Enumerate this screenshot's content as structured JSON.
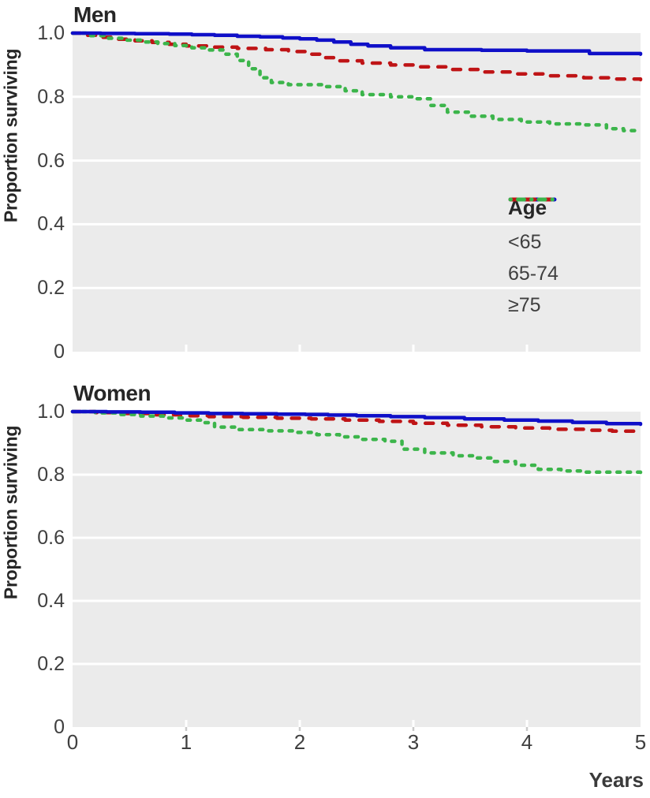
{
  "y_axis_label": "Proportion surviving",
  "x_axis_label": "Years",
  "xticks": [
    "0",
    "1",
    "2",
    "3",
    "4",
    "5"
  ],
  "panels": [
    {
      "title": "Men",
      "yticks": [
        "1.0",
        "0.8",
        "0.6",
        "0.4",
        "0.2",
        "0"
      ]
    },
    {
      "title": "Women",
      "yticks": [
        "1.0",
        "0.8",
        "0.6",
        "0.4",
        "0.2",
        "0"
      ]
    }
  ],
  "legend": {
    "title": "Age",
    "items": [
      {
        "label": "<65"
      },
      {
        "label": "65-74"
      },
      {
        "label": "≥75"
      }
    ]
  },
  "colors": {
    "plot_background": "#ebebeb",
    "gridline": "#ffffff",
    "axis_tick_inner": "#ffffff",
    "axis_tick_outer": "#c9c9c9",
    "tick_text": "#3f3f3f",
    "title_text": "#262626",
    "blue": "#0f0fc8",
    "red": "#bf1416",
    "green": "#3cb54b"
  },
  "chart_data": [
    {
      "type": "line",
      "title": "Men",
      "xlabel": "Years",
      "ylabel": "Proportion surviving",
      "xlim": [
        0,
        5
      ],
      "ylim": [
        0,
        1.0
      ],
      "xticks": [
        0,
        1,
        2,
        3,
        4,
        5
      ],
      "yticks": [
        0,
        0.2,
        0.4,
        0.6,
        0.8,
        1.0
      ],
      "grid": "horizontal white gridlines on gray background",
      "step": "after",
      "legend_position": "inside right, mid-height",
      "series": [
        {
          "name": "<65",
          "color": "#0f0fc8",
          "linestyle": "solid",
          "points": [
            [
              0,
              1.0
            ],
            [
              0.25,
              0.999
            ],
            [
              0.55,
              0.998
            ],
            [
              0.85,
              0.997
            ],
            [
              1.05,
              0.995
            ],
            [
              1.25,
              0.993
            ],
            [
              1.45,
              0.99
            ],
            [
              1.65,
              0.988
            ],
            [
              1.85,
              0.985
            ],
            [
              2.0,
              0.982
            ],
            [
              2.15,
              0.978
            ],
            [
              2.3,
              0.972
            ],
            [
              2.45,
              0.965
            ],
            [
              2.6,
              0.96
            ],
            [
              2.8,
              0.954
            ],
            [
              3.1,
              0.948
            ],
            [
              3.6,
              0.946
            ],
            [
              4.0,
              0.944
            ],
            [
              4.55,
              0.936
            ],
            [
              5,
              0.934
            ]
          ]
        },
        {
          "name": "65-74",
          "color": "#bf1416",
          "linestyle": "dashed",
          "points": [
            [
              0,
              1.0
            ],
            [
              0.1,
              0.993
            ],
            [
              0.25,
              0.987
            ],
            [
              0.4,
              0.981
            ],
            [
              0.55,
              0.976
            ],
            [
              0.7,
              0.971
            ],
            [
              0.85,
              0.965
            ],
            [
              1.0,
              0.96
            ],
            [
              1.2,
              0.956
            ],
            [
              1.45,
              0.952
            ],
            [
              1.7,
              0.948
            ],
            [
              1.9,
              0.942
            ],
            [
              2.05,
              0.934
            ],
            [
              2.2,
              0.923
            ],
            [
              2.35,
              0.913
            ],
            [
              2.55,
              0.906
            ],
            [
              2.8,
              0.9
            ],
            [
              3.0,
              0.894
            ],
            [
              3.3,
              0.886
            ],
            [
              3.6,
              0.878
            ],
            [
              3.9,
              0.872
            ],
            [
              4.2,
              0.866
            ],
            [
              4.5,
              0.86
            ],
            [
              4.75,
              0.856
            ],
            [
              5,
              0.854
            ]
          ]
        },
        {
          "name": "≥75",
          "color": "#3cb54b",
          "linestyle": "short-dashed",
          "points": [
            [
              0,
              1.0
            ],
            [
              0.15,
              0.992
            ],
            [
              0.3,
              0.984
            ],
            [
              0.45,
              0.978
            ],
            [
              0.6,
              0.972
            ],
            [
              0.75,
              0.967
            ],
            [
              0.9,
              0.961
            ],
            [
              1.05,
              0.954
            ],
            [
              1.2,
              0.947
            ],
            [
              1.35,
              0.934
            ],
            [
              1.45,
              0.914
            ],
            [
              1.55,
              0.888
            ],
            [
              1.65,
              0.86
            ],
            [
              1.75,
              0.845
            ],
            [
              1.9,
              0.838
            ],
            [
              2.2,
              0.832
            ],
            [
              2.4,
              0.819
            ],
            [
              2.55,
              0.807
            ],
            [
              2.8,
              0.8
            ],
            [
              3.0,
              0.794
            ],
            [
              3.15,
              0.773
            ],
            [
              3.3,
              0.752
            ],
            [
              3.5,
              0.739
            ],
            [
              3.7,
              0.729
            ],
            [
              3.95,
              0.721
            ],
            [
              4.2,
              0.715
            ],
            [
              4.5,
              0.712
            ],
            [
              4.7,
              0.7
            ],
            [
              4.85,
              0.694
            ],
            [
              5,
              0.692
            ]
          ]
        }
      ]
    },
    {
      "type": "line",
      "title": "Women",
      "xlabel": "Years",
      "ylabel": "Proportion surviving",
      "xlim": [
        0,
        5
      ],
      "ylim": [
        0,
        1.0
      ],
      "xticks": [
        0,
        1,
        2,
        3,
        4,
        5
      ],
      "yticks": [
        0,
        0.2,
        0.4,
        0.6,
        0.8,
        1.0
      ],
      "grid": "horizontal white gridlines on gray background",
      "step": "after",
      "legend_position": "none (shared with Men panel)",
      "series": [
        {
          "name": "<65",
          "color": "#0f0fc8",
          "linestyle": "solid",
          "points": [
            [
              0,
              1.0
            ],
            [
              0.3,
              0.999
            ],
            [
              0.6,
              0.998
            ],
            [
              0.9,
              0.996
            ],
            [
              1.2,
              0.994
            ],
            [
              1.5,
              0.993
            ],
            [
              1.8,
              0.992
            ],
            [
              2.05,
              0.991
            ],
            [
              2.25,
              0.989
            ],
            [
              2.5,
              0.987
            ],
            [
              2.8,
              0.984
            ],
            [
              3.1,
              0.981
            ],
            [
              3.45,
              0.977
            ],
            [
              3.8,
              0.973
            ],
            [
              4.1,
              0.97
            ],
            [
              4.4,
              0.966
            ],
            [
              4.7,
              0.962
            ],
            [
              5,
              0.96
            ]
          ]
        },
        {
          "name": "65-74",
          "color": "#bf1416",
          "linestyle": "dashed",
          "points": [
            [
              0,
              1.0
            ],
            [
              0.2,
              0.997
            ],
            [
              0.45,
              0.994
            ],
            [
              0.7,
              0.99
            ],
            [
              0.95,
              0.987
            ],
            [
              1.2,
              0.984
            ],
            [
              1.5,
              0.982
            ],
            [
              1.8,
              0.979
            ],
            [
              2.1,
              0.977
            ],
            [
              2.4,
              0.973
            ],
            [
              2.7,
              0.969
            ],
            [
              3.0,
              0.963
            ],
            [
              3.3,
              0.957
            ],
            [
              3.6,
              0.952
            ],
            [
              3.9,
              0.948
            ],
            [
              4.2,
              0.944
            ],
            [
              4.5,
              0.941
            ],
            [
              4.75,
              0.938
            ],
            [
              5,
              0.936
            ]
          ]
        },
        {
          "name": "≥75",
          "color": "#3cb54b",
          "linestyle": "short-dashed",
          "points": [
            [
              0,
              1.0
            ],
            [
              0.2,
              0.996
            ],
            [
              0.4,
              0.991
            ],
            [
              0.6,
              0.986
            ],
            [
              0.8,
              0.98
            ],
            [
              1.0,
              0.973
            ],
            [
              1.15,
              0.965
            ],
            [
              1.25,
              0.951
            ],
            [
              1.45,
              0.943
            ],
            [
              1.7,
              0.939
            ],
            [
              1.95,
              0.934
            ],
            [
              2.15,
              0.927
            ],
            [
              2.35,
              0.92
            ],
            [
              2.55,
              0.912
            ],
            [
              2.75,
              0.906
            ],
            [
              2.9,
              0.881
            ],
            [
              3.1,
              0.869
            ],
            [
              3.35,
              0.86
            ],
            [
              3.55,
              0.853
            ],
            [
              3.7,
              0.842
            ],
            [
              3.9,
              0.83
            ],
            [
              4.1,
              0.817
            ],
            [
              4.3,
              0.812
            ],
            [
              4.5,
              0.808
            ],
            [
              5,
              0.805
            ]
          ]
        }
      ]
    }
  ]
}
